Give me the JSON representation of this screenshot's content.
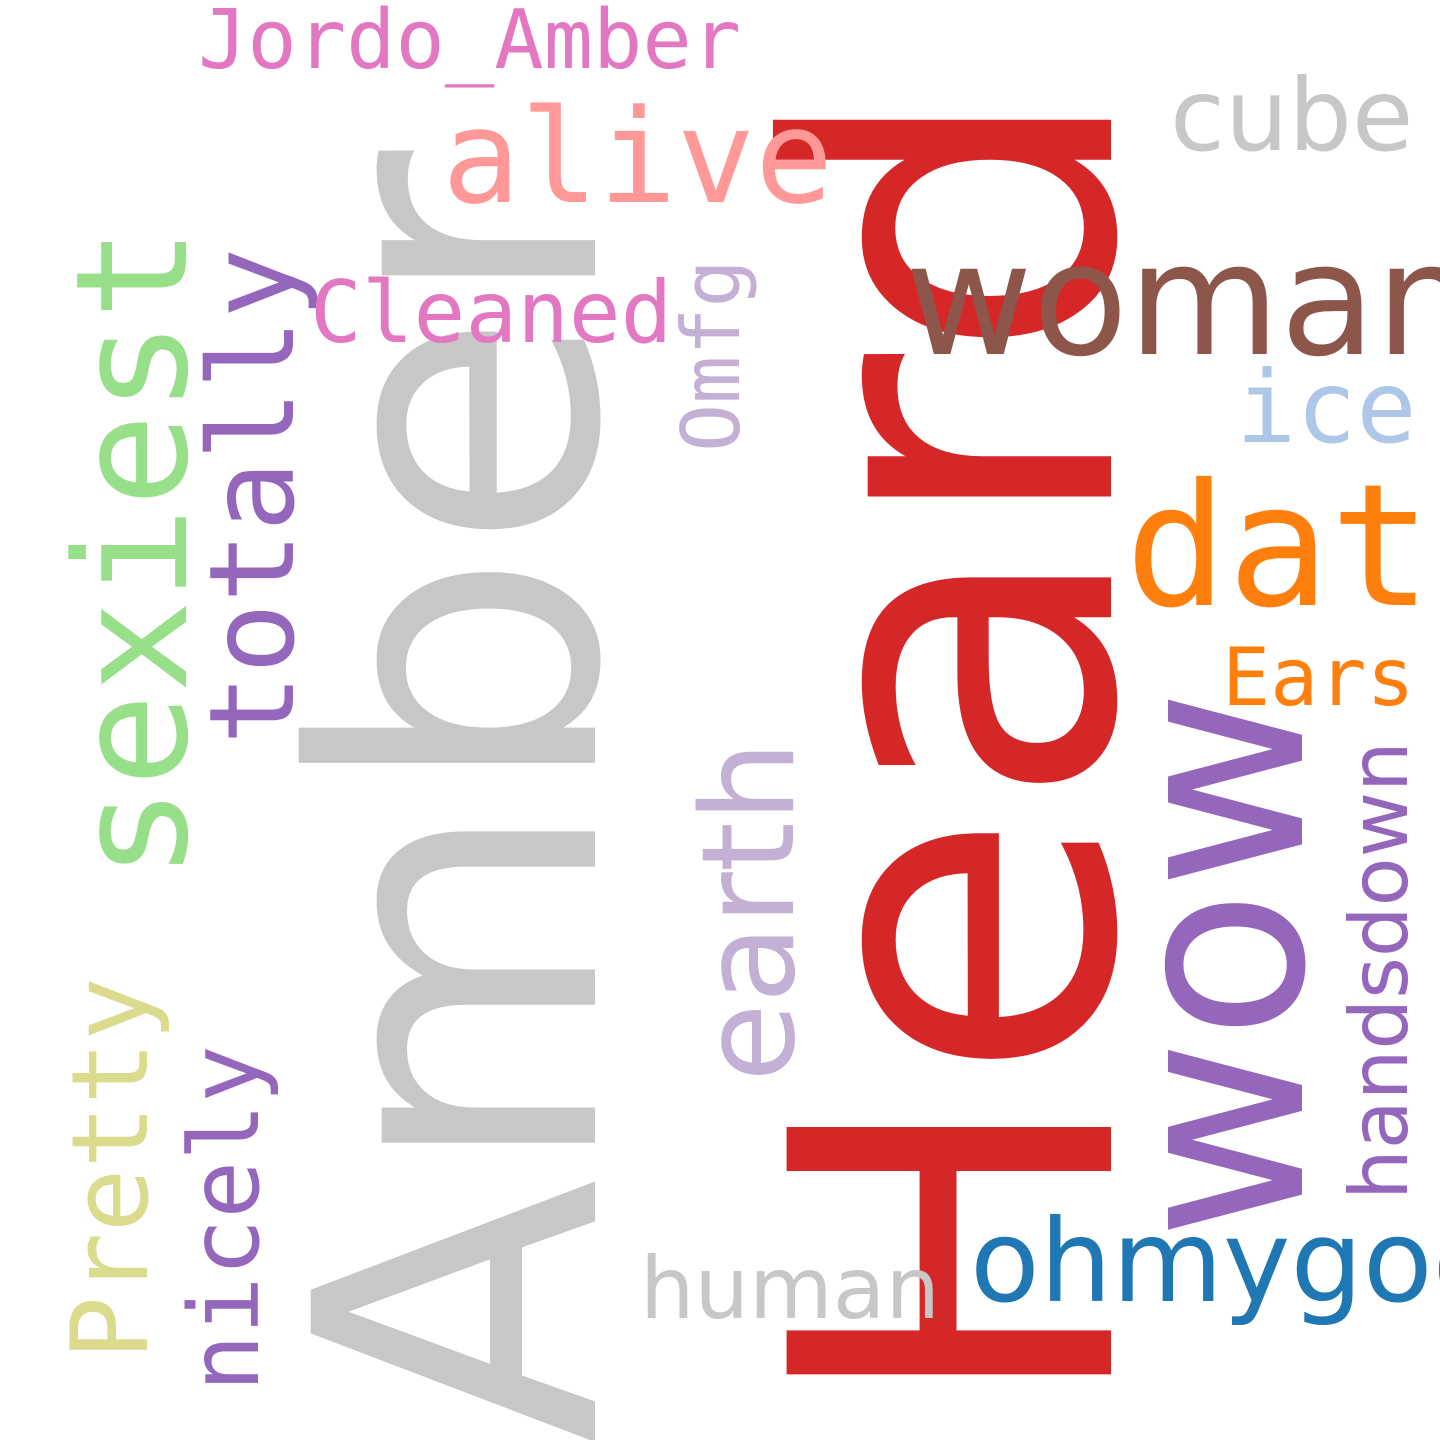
{
  "words": {
    "amber": {
      "text": "Amber",
      "color": "#c7c7c7"
    },
    "heard": {
      "text": "Heard",
      "color": "#d62728"
    },
    "wow": {
      "text": "wow",
      "color": "#9467bd"
    },
    "woman": {
      "text": "woman",
      "color": "#8c564b"
    },
    "sexiest": {
      "text": "sexiest",
      "color": "#98df8a"
    },
    "alive": {
      "text": "alive",
      "color": "#ff9896"
    },
    "dat": {
      "text": "dat",
      "color": "#ff7f0e"
    },
    "earth": {
      "text": "earth",
      "color": "#c5b0d5"
    },
    "totally": {
      "text": "totally",
      "color": "#9467bd"
    },
    "pretty": {
      "text": "Pretty",
      "color": "#dbdb8d"
    },
    "nicely": {
      "text": "nicely",
      "color": "#9467bd"
    },
    "ohmygod": {
      "text": "ohmygod",
      "color": "#1f77b4"
    },
    "jordo_amber": {
      "text": "Jordo_Amber",
      "color": "#e377c2"
    },
    "cube": {
      "text": "cube",
      "color": "#c7c7c7"
    },
    "ice": {
      "text": "ice",
      "color": "#aec7e8"
    },
    "cleaned": {
      "text": "Cleaned",
      "color": "#e377c2"
    },
    "omfg": {
      "text": "Omfg",
      "color": "#c5b0d5"
    },
    "ears": {
      "text": "Ears",
      "color": "#ff7f0e"
    },
    "handsdown": {
      "text": "handsdown",
      "color": "#9467bd"
    },
    "human": {
      "text": "human",
      "color": "#c7c7c7"
    }
  }
}
